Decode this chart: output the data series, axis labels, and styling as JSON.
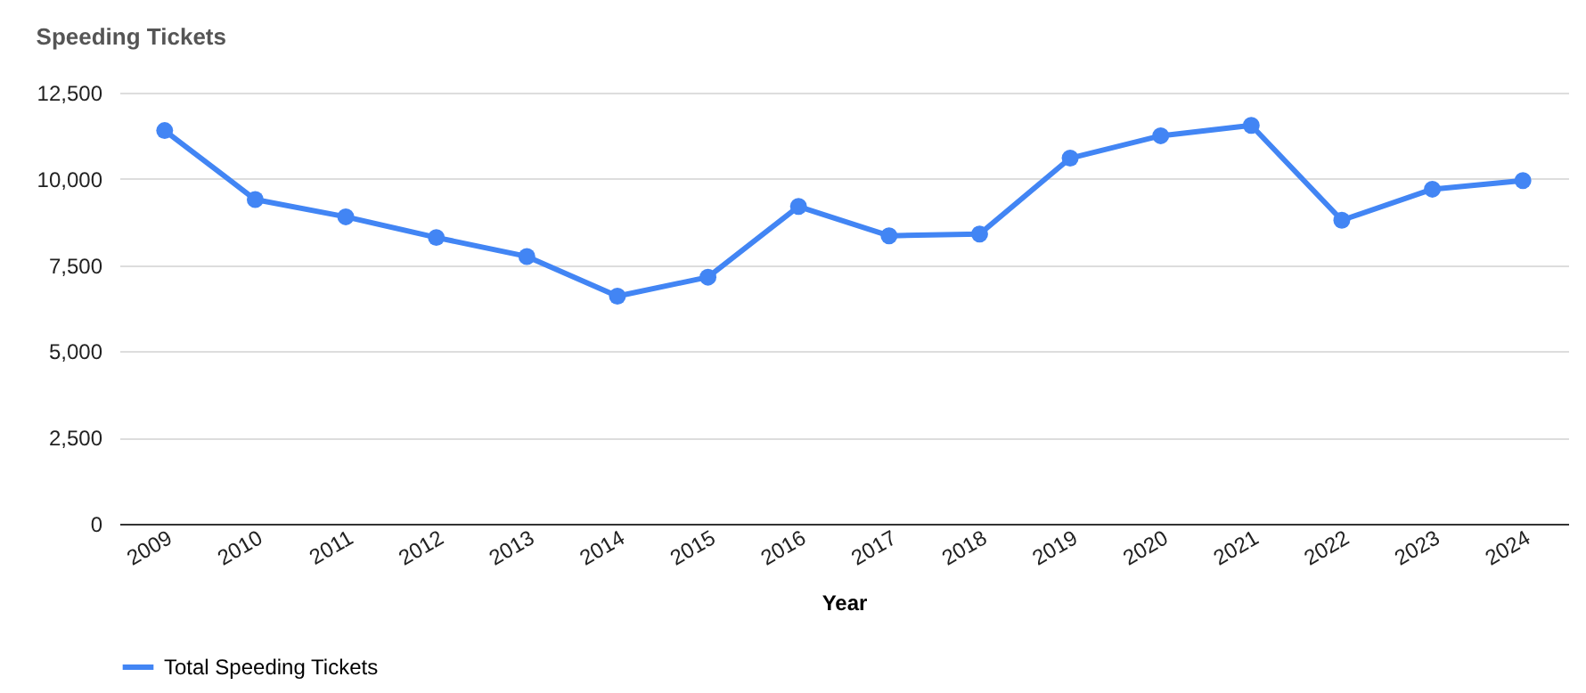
{
  "chart_data": {
    "type": "line",
    "title": "Speeding Tickets",
    "xlabel": "Year",
    "categories": [
      "2009",
      "2010",
      "2011",
      "2012",
      "2013",
      "2014",
      "2015",
      "2016",
      "2017",
      "2018",
      "2019",
      "2020",
      "2021",
      "2022",
      "2023",
      "2024"
    ],
    "series": [
      {
        "name": "Total Speeding Tickets",
        "color": "#4285f4",
        "values": [
          11400,
          9400,
          8900,
          8300,
          7750,
          6600,
          7150,
          9200,
          8350,
          8400,
          10600,
          11250,
          11550,
          8800,
          9700,
          9950
        ]
      }
    ],
    "ylim": [
      0,
      12500
    ],
    "yticks": [
      {
        "value": 0,
        "label": "0"
      },
      {
        "value": 2500,
        "label": "2,500"
      },
      {
        "value": 5000,
        "label": "5,000"
      },
      {
        "value": 7500,
        "label": "7,500"
      },
      {
        "value": 10000,
        "label": "10,000"
      },
      {
        "value": 12500,
        "label": "12,500"
      }
    ],
    "grid": "y",
    "legend": "bottom",
    "marker": "circle",
    "line_style": "solid"
  }
}
